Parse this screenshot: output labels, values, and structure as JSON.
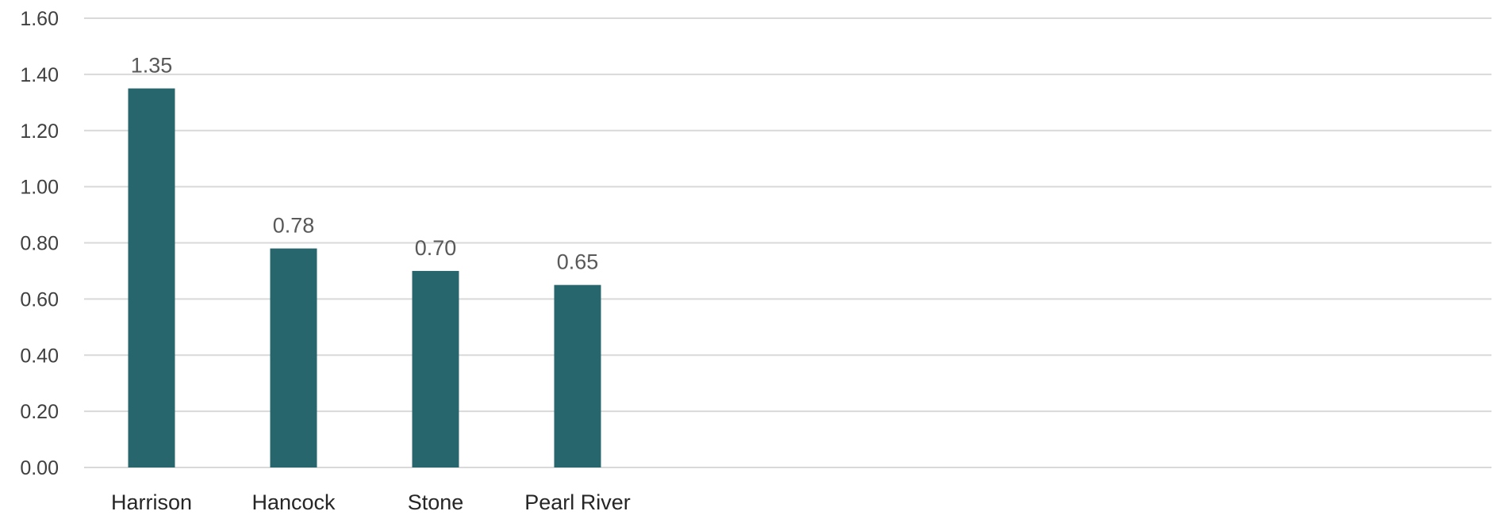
{
  "chart_data": {
    "type": "bar",
    "title": "",
    "xlabel": "",
    "ylabel": "",
    "categories": [
      "Harrison",
      "Hancock",
      "Stone",
      "Pearl River"
    ],
    "values": [
      1.35,
      0.78,
      0.7,
      0.65
    ],
    "data_labels": [
      "1.35",
      "0.78",
      "0.70",
      "0.65"
    ],
    "ylim": [
      0,
      1.6
    ],
    "y_ticks": [
      "0.00",
      "0.20",
      "0.40",
      "0.60",
      "0.80",
      "1.00",
      "1.20",
      "1.40",
      "1.60"
    ],
    "grid": true,
    "legend": "none",
    "bar_color": "#28666e"
  }
}
